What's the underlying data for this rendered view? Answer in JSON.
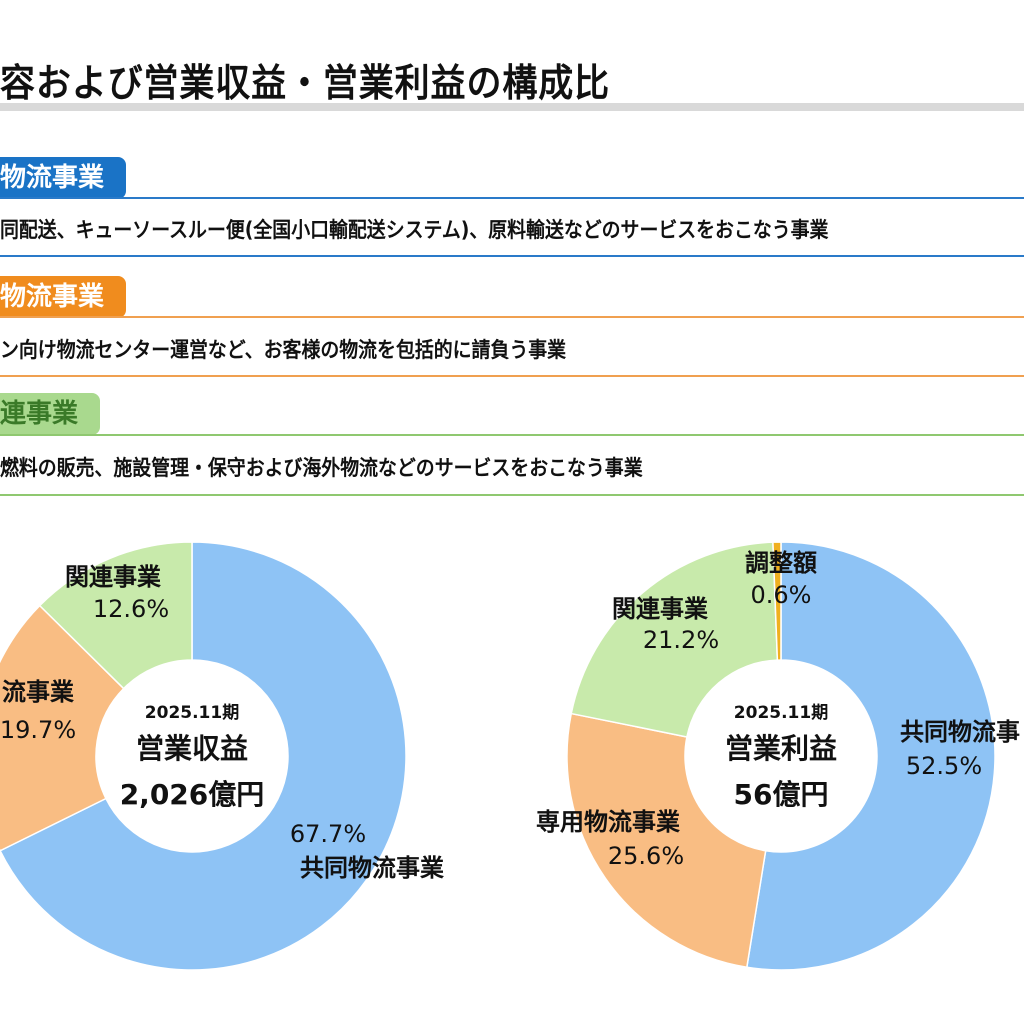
{
  "page": {
    "title": "容および営業収益・営業利益の構成比"
  },
  "segments": [
    {
      "tag": "物流事業",
      "color": "#1a73c6",
      "line_color": "#2a7ac9",
      "description": "同配送、キューソースルー便(全国小口輸配送システム)、原料輸送などのサービスをおこなう事業"
    },
    {
      "tag": "物流事業",
      "color": "#f08c1e",
      "line_color": "#f0a050",
      "description": "ン向け物流センター運営など、お客様の物流を包括的に請負う事業"
    },
    {
      "tag": "連事業",
      "color": "#a9d98e",
      "line_color": "#8fc870",
      "description": "燃料の販売、施設管理・保守および海外物流などのサービスをおこなう事業"
    }
  ],
  "colors": {
    "共同物流事業": "#8ec3f5",
    "専用物流事業": "#f9bd83",
    "関連事業": "#c8eaab",
    "調整額": "#f0b020"
  },
  "chart_data": [
    {
      "type": "pie",
      "variant": "donut",
      "center_period": "2025.11期",
      "center_title": "営業収益",
      "center_value": "2,026億円",
      "slices": [
        {
          "name": "共同物流事業",
          "value": 67.7,
          "label": "67.7%"
        },
        {
          "name": "専用物流事業",
          "value": 19.7,
          "label": "19.7%",
          "shown_name": "流事業"
        },
        {
          "name": "関連事業",
          "value": 12.6,
          "label": "12.6%"
        }
      ]
    },
    {
      "type": "pie",
      "variant": "donut",
      "center_period": "2025.11期",
      "center_title": "営業利益",
      "center_value": "56億円",
      "slices": [
        {
          "name": "共同物流事業",
          "value": 52.5,
          "label": "52.5%",
          "shown_name": "共同物流事"
        },
        {
          "name": "専用物流事業",
          "value": 25.6,
          "label": "25.6%"
        },
        {
          "name": "関連事業",
          "value": 21.2,
          "label": "21.2%"
        },
        {
          "name": "調整額",
          "value": 0.6,
          "label": "0.6%"
        }
      ]
    }
  ]
}
